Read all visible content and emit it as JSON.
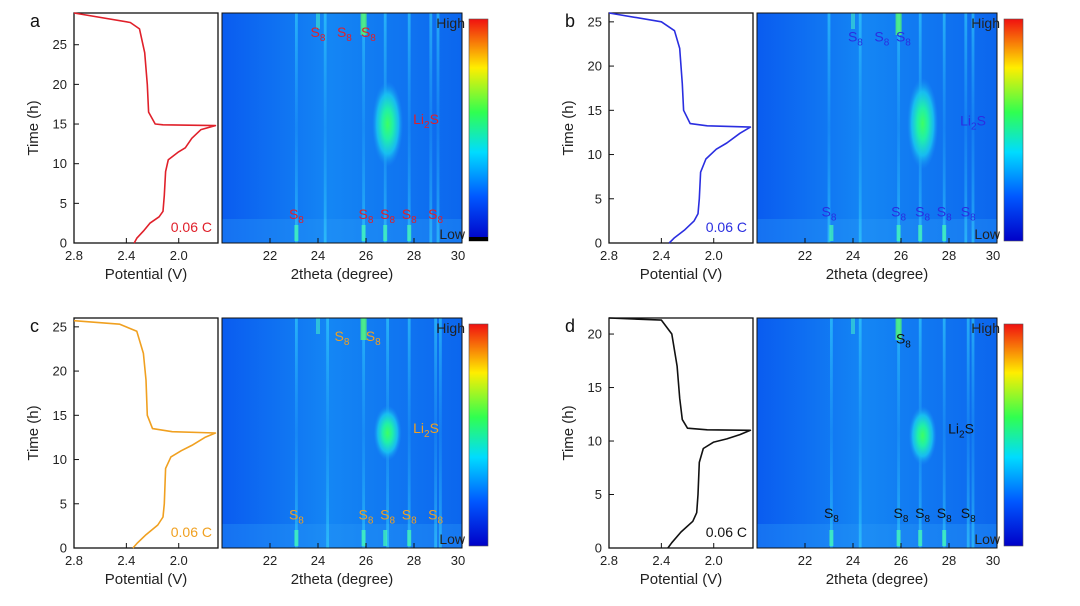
{
  "figure": {
    "colorbar": {
      "high_label": "High",
      "low_label": "Low"
    },
    "panels": [
      {
        "letter": "a",
        "color": "#e0202a",
        "rate_label": "0.06 C",
        "time_ticks": [
          0,
          5,
          10,
          15,
          20,
          25
        ]
      },
      {
        "letter": "b",
        "color": "#2a2ee0",
        "rate_label": "0.06 C",
        "time_ticks": [
          0,
          5,
          10,
          15,
          20,
          25
        ]
      },
      {
        "letter": "c",
        "color": "#f0a020",
        "rate_label": "0.06 C",
        "time_ticks": [
          0,
          5,
          10,
          15,
          20,
          25
        ]
      },
      {
        "letter": "d",
        "color": "#111111",
        "rate_label": "0.06 C",
        "time_ticks": [
          0,
          5,
          10,
          15,
          20
        ]
      }
    ]
  },
  "chart_data": [
    {
      "panel": "a",
      "type": "line",
      "title": "",
      "xlabel": "Potential (V)",
      "ylabel": "Time (h)",
      "xlim": [
        2.8,
        1.7
      ],
      "ylim": [
        0,
        29
      ],
      "x_ticks": [
        2.8,
        2.4,
        2.0
      ],
      "x_tick_labels": [
        "2.8",
        "2.4",
        "2.0"
      ],
      "series": [
        {
          "name": "0.06 C",
          "points": [
            [
              2.34,
              0
            ],
            [
              2.32,
              0.6
            ],
            [
              2.27,
              1.5
            ],
            [
              2.22,
              2.5
            ],
            [
              2.15,
              3.3
            ],
            [
              2.12,
              4
            ],
            [
              2.11,
              6
            ],
            [
              2.1,
              9
            ],
            [
              2.08,
              10.5
            ],
            [
              2.0,
              11.5
            ],
            [
              1.95,
              12
            ],
            [
              1.9,
              13.2
            ],
            [
              1.83,
              14.3
            ],
            [
              1.72,
              14.8
            ],
            [
              2.12,
              14.9
            ],
            [
              2.18,
              15
            ],
            [
              2.23,
              16.5
            ],
            [
              2.24,
              20
            ],
            [
              2.26,
              24
            ],
            [
              2.3,
              27
            ],
            [
              2.37,
              27.8
            ],
            [
              2.8,
              29
            ]
          ]
        }
      ]
    },
    {
      "panel": "a",
      "type": "heatmap",
      "xlabel": "2theta (degree)",
      "ylabel": "",
      "xlim": [
        20,
        30
      ],
      "ylim": [
        0,
        29
      ],
      "x_ticks": [
        22,
        24,
        26,
        28,
        30
      ],
      "x_tick_labels": [
        "22",
        "24",
        "26",
        "28",
        "30"
      ],
      "annotations": [
        {
          "text": "S",
          "sub": "8",
          "x": 24.0,
          "y": 26.0
        },
        {
          "text": "S",
          "sub": "8",
          "x": 25.1,
          "y": 26.0
        },
        {
          "text": "S",
          "sub": "8",
          "x": 26.1,
          "y": 26.0
        },
        {
          "text": "Li",
          "sub": "2",
          "after": "S",
          "x": 28.5,
          "y": 15.0
        },
        {
          "text": "S",
          "sub": "8",
          "x": 23.1,
          "y": 3.0
        },
        {
          "text": "S",
          "sub": "8",
          "x": 26.0,
          "y": 3.0
        },
        {
          "text": "S",
          "sub": "8",
          "x": 26.9,
          "y": 3.0
        },
        {
          "text": "S",
          "sub": "8",
          "x": 27.8,
          "y": 3.0
        },
        {
          "text": "S",
          "sub": "8",
          "x": 28.9,
          "y": 3.0
        }
      ],
      "peaks": [
        23.1,
        24.3,
        25.9,
        26.8,
        27.8,
        28.7,
        29.0
      ],
      "broad_peak": {
        "center": 26.9,
        "time_center": 15,
        "width": 0.5,
        "time_width": 4.5
      }
    },
    {
      "panel": "b",
      "type": "line",
      "title": "",
      "xlabel": "Potential (V)",
      "ylabel": "Time (h)",
      "xlim": [
        2.8,
        1.7
      ],
      "ylim": [
        0,
        26
      ],
      "x_ticks": [
        2.8,
        2.4,
        2.0
      ],
      "x_tick_labels": [
        "2.8",
        "2.4",
        "2.0"
      ],
      "series": [
        {
          "name": "0.06 C",
          "points": [
            [
              2.34,
              0
            ],
            [
              2.3,
              0.6
            ],
            [
              2.22,
              1.5
            ],
            [
              2.15,
              2.5
            ],
            [
              2.12,
              3.3
            ],
            [
              2.11,
              5
            ],
            [
              2.1,
              8
            ],
            [
              2.06,
              9.5
            ],
            [
              1.98,
              10.6
            ],
            [
              1.9,
              11.3
            ],
            [
              1.8,
              12.4
            ],
            [
              1.72,
              13.1
            ],
            [
              2.05,
              13.25
            ],
            [
              2.18,
              13.5
            ],
            [
              2.23,
              15
            ],
            [
              2.24,
              18
            ],
            [
              2.26,
              22
            ],
            [
              2.3,
              24
            ],
            [
              2.4,
              25
            ],
            [
              2.8,
              26
            ]
          ]
        }
      ]
    },
    {
      "panel": "b",
      "type": "heatmap",
      "xlabel": "2theta (degree)",
      "ylabel": "",
      "xlim": [
        20,
        30
      ],
      "ylim": [
        0,
        26
      ],
      "x_ticks": [
        22,
        24,
        26,
        28,
        30
      ],
      "x_tick_labels": [
        "22",
        "24",
        "26",
        "28",
        "30"
      ],
      "annotations": [
        {
          "text": "S",
          "sub": "8",
          "x": 24.1,
          "y": 22.8
        },
        {
          "text": "S",
          "sub": "8",
          "x": 25.2,
          "y": 22.8
        },
        {
          "text": "S",
          "sub": "8",
          "x": 26.1,
          "y": 22.8
        },
        {
          "text": "Li",
          "sub": "2",
          "after": "S",
          "x": 29.0,
          "y": 13.3
        },
        {
          "text": "S",
          "sub": "8",
          "x": 23.0,
          "y": 3.0
        },
        {
          "text": "S",
          "sub": "8",
          "x": 25.9,
          "y": 3.0
        },
        {
          "text": "S",
          "sub": "8",
          "x": 26.9,
          "y": 3.0
        },
        {
          "text": "S",
          "sub": "8",
          "x": 27.8,
          "y": 3.0
        },
        {
          "text": "S",
          "sub": "8",
          "x": 28.8,
          "y": 3.0
        }
      ],
      "peaks": [
        23.0,
        24.3,
        25.9,
        26.8,
        27.8,
        28.7,
        29.0
      ],
      "broad_peak": {
        "center": 26.9,
        "time_center": 13.5,
        "width": 0.5,
        "time_width": 4.3
      }
    },
    {
      "panel": "c",
      "type": "line",
      "title": "",
      "xlabel": "Potential (V)",
      "ylabel": "Time (h)",
      "xlim": [
        2.8,
        1.7
      ],
      "ylim": [
        0,
        26
      ],
      "x_ticks": [
        2.8,
        2.4,
        2.0
      ],
      "x_tick_labels": [
        "2.8",
        "2.4",
        "2.0"
      ],
      "series": [
        {
          "name": "0.06 C",
          "points": [
            [
              2.35,
              0
            ],
            [
              2.32,
              0.5
            ],
            [
              2.25,
              1.5
            ],
            [
              2.16,
              2.6
            ],
            [
              2.12,
              3.5
            ],
            [
              2.11,
              5
            ],
            [
              2.1,
              9
            ],
            [
              2.06,
              10.3
            ],
            [
              1.98,
              11
            ],
            [
              1.9,
              11.6
            ],
            [
              1.8,
              12.5
            ],
            [
              1.72,
              13
            ],
            [
              2.05,
              13.15
            ],
            [
              2.2,
              13.5
            ],
            [
              2.24,
              15
            ],
            [
              2.25,
              19
            ],
            [
              2.27,
              22
            ],
            [
              2.32,
              24.5
            ],
            [
              2.45,
              25.3
            ],
            [
              2.8,
              25.7
            ]
          ]
        }
      ]
    },
    {
      "panel": "c",
      "type": "heatmap",
      "xlabel": "2theta (degree)",
      "ylabel": "",
      "xlim": [
        20,
        30
      ],
      "ylim": [
        0,
        26
      ],
      "x_ticks": [
        22,
        24,
        26,
        28,
        30
      ],
      "x_tick_labels": [
        "22",
        "24",
        "26",
        "28",
        "30"
      ],
      "annotations": [
        {
          "text": "S",
          "sub": "8",
          "x": 25.0,
          "y": 23.4
        },
        {
          "text": "S",
          "sub": "8",
          "x": 26.3,
          "y": 23.4
        },
        {
          "text": "Li",
          "sub": "2",
          "after": "S",
          "x": 28.5,
          "y": 13.0
        },
        {
          "text": "S",
          "sub": "8",
          "x": 23.1,
          "y": 3.2
        },
        {
          "text": "S",
          "sub": "8",
          "x": 26.0,
          "y": 3.2
        },
        {
          "text": "S",
          "sub": "8",
          "x": 26.9,
          "y": 3.2
        },
        {
          "text": "S",
          "sub": "8",
          "x": 27.8,
          "y": 3.2
        },
        {
          "text": "S",
          "sub": "8",
          "x": 28.9,
          "y": 3.2
        }
      ],
      "peaks": [
        23.1,
        24.4,
        25.9,
        26.9,
        27.8,
        28.9,
        29.1
      ],
      "broad_peak": {
        "center": 26.9,
        "time_center": 13,
        "width": 0.45,
        "time_width": 2.6
      }
    },
    {
      "panel": "d",
      "type": "line",
      "title": "",
      "xlabel": "Potential (V)",
      "ylabel": "Time (h)",
      "xlim": [
        2.8,
        1.7
      ],
      "ylim": [
        0,
        21.5
      ],
      "x_ticks": [
        2.8,
        2.4,
        2.0
      ],
      "x_tick_labels": [
        "2.8",
        "2.4",
        "2.0"
      ],
      "series": [
        {
          "name": "0.06 C",
          "points": [
            [
              2.35,
              0
            ],
            [
              2.32,
              0.5
            ],
            [
              2.25,
              1.5
            ],
            [
              2.16,
              2.5
            ],
            [
              2.13,
              3.3
            ],
            [
              2.12,
              5
            ],
            [
              2.11,
              8
            ],
            [
              2.08,
              9.3
            ],
            [
              2.0,
              9.9
            ],
            [
              1.9,
              10.2
            ],
            [
              1.8,
              10.6
            ],
            [
              1.72,
              11
            ],
            [
              2.05,
              11.05
            ],
            [
              2.2,
              11.2
            ],
            [
              2.24,
              12
            ],
            [
              2.26,
              14
            ],
            [
              2.28,
              17
            ],
            [
              2.32,
              20
            ],
            [
              2.4,
              21.3
            ],
            [
              2.8,
              21.5
            ]
          ]
        }
      ]
    },
    {
      "panel": "d",
      "type": "heatmap",
      "xlabel": "2theta (degree)",
      "ylabel": "",
      "xlim": [
        20,
        30
      ],
      "ylim": [
        0,
        21.5
      ],
      "x_ticks": [
        22,
        24,
        26,
        28,
        30
      ],
      "x_tick_labels": [
        "22",
        "24",
        "26",
        "28",
        "30"
      ],
      "annotations": [
        {
          "text": "S",
          "sub": "8",
          "x": 26.1,
          "y": 19.1
        },
        {
          "text": "Li",
          "sub": "2",
          "after": "S",
          "x": 28.5,
          "y": 10.7
        },
        {
          "text": "S",
          "sub": "8",
          "x": 23.1,
          "y": 2.8
        },
        {
          "text": "S",
          "sub": "8",
          "x": 26.0,
          "y": 2.8
        },
        {
          "text": "S",
          "sub": "8",
          "x": 26.9,
          "y": 2.8
        },
        {
          "text": "S",
          "sub": "8",
          "x": 27.8,
          "y": 2.8
        },
        {
          "text": "S",
          "sub": "8",
          "x": 28.8,
          "y": 2.8
        }
      ],
      "peaks": [
        23.1,
        24.3,
        25.9,
        26.8,
        27.8,
        28.8,
        29.0
      ],
      "broad_peak": {
        "center": 26.9,
        "time_center": 10.5,
        "width": 0.45,
        "time_width": 2.3
      }
    }
  ]
}
